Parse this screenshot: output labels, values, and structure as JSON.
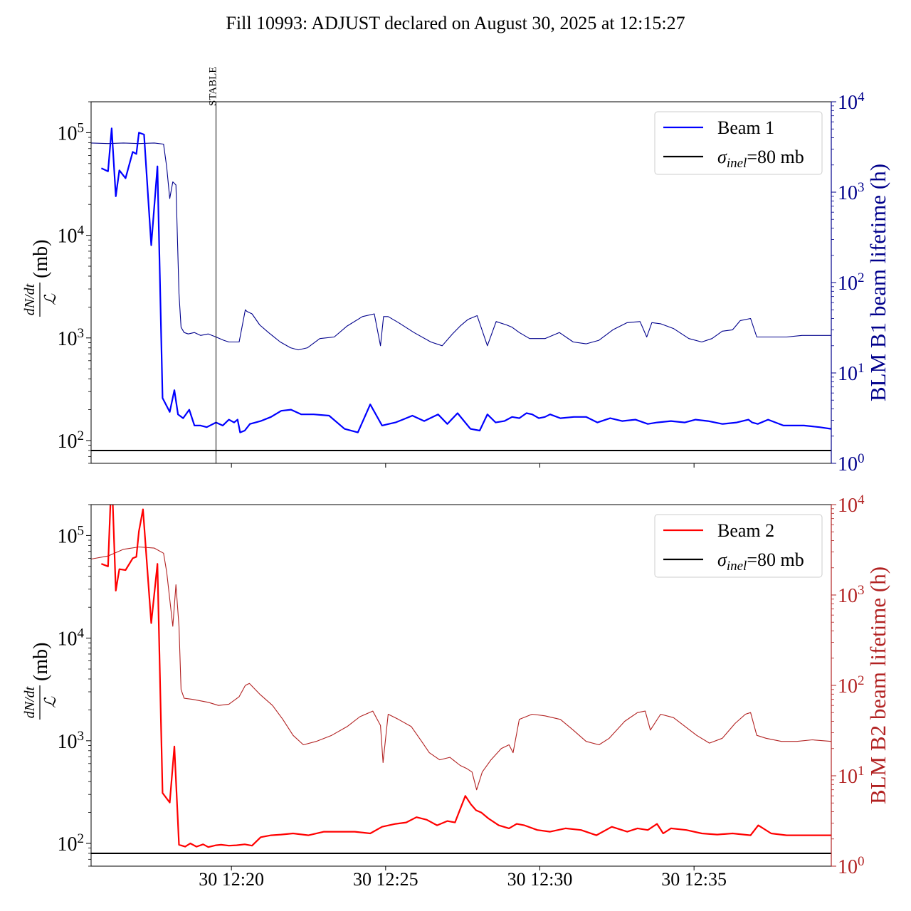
{
  "title": "Fill 10993: ADJUST declared on August 30, 2025 at 12:15:27",
  "colors": {
    "beam1": "#0000ff",
    "beam1_lifetime": "#00008b",
    "beam2": "#ff0000",
    "beam2_lifetime": "#b22222",
    "reference": "#000000",
    "marker": "#000000"
  },
  "chart_data": [
    {
      "type": "line",
      "panel": "top",
      "ylabel_left": "dN/dt / ℒ (mb)",
      "ylabel_right": "BLM B1 beam lifetime (h)",
      "yscale": "log",
      "ylim_left": [
        60,
        200000
      ],
      "ylim_right": [
        1,
        10000
      ],
      "left_ticks": [
        {
          "value": 100,
          "label": "10²"
        },
        {
          "value": 1000,
          "label": "10³"
        },
        {
          "value": 10000,
          "label": "10⁴"
        },
        {
          "value": 100000,
          "label": "10⁵"
        }
      ],
      "right_ticks": [
        {
          "value": 1,
          "label": "10⁰"
        },
        {
          "value": 10,
          "label": "10¹"
        },
        {
          "value": 100,
          "label": "10²"
        },
        {
          "value": 1000,
          "label": "10³"
        },
        {
          "value": 10000,
          "label": "10⁴"
        }
      ],
      "xlim": [
        "12:15:27",
        "12:39:27"
      ],
      "x_ticks": [],
      "legend_position": "top-right",
      "legend": [
        {
          "label": "Beam 1",
          "color": "#0000ff"
        },
        {
          "label": "σinel=80 mb",
          "color": "#000000"
        }
      ],
      "reference_line": {
        "value": 80,
        "label": "σinel=80 mb"
      },
      "marker": {
        "x": "12:19:30",
        "label": "STABLE"
      },
      "series": [
        {
          "name": "Beam 1",
          "axis": "left",
          "color": "#0000ff",
          "x": [
            "12:15:47",
            "12:16:00",
            "12:16:07",
            "12:16:15",
            "12:16:22",
            "12:16:34",
            "12:16:48",
            "12:16:55",
            "12:17:00",
            "12:17:10",
            "12:17:24",
            "12:17:36",
            "12:17:46",
            "12:18:00",
            "12:18:09",
            "12:18:16",
            "12:18:26",
            "12:18:38",
            "12:18:48",
            "12:19:00",
            "12:19:12",
            "12:19:30",
            "12:19:43",
            "12:19:55",
            "12:20:05",
            "12:20:12",
            "12:20:17",
            "12:20:26",
            "12:20:36",
            "12:20:47",
            "12:20:57",
            "12:21:17",
            "12:21:37",
            "12:21:56",
            "12:22:16",
            "12:22:40",
            "12:23:10",
            "12:23:40",
            "12:24:06",
            "12:24:30",
            "12:24:53",
            "12:25:06",
            "12:25:19",
            "12:25:33",
            "12:25:52",
            "12:26:15",
            "12:26:42",
            "12:27:00",
            "12:27:20",
            "12:27:45",
            "12:28:03",
            "12:28:18",
            "12:28:34",
            "12:28:51",
            "12:29:06",
            "12:29:20",
            "12:29:34",
            "12:29:45",
            "12:29:58",
            "12:30:10",
            "12:30:20",
            "12:30:40",
            "12:31:06",
            "12:31:30",
            "12:31:52",
            "12:32:17",
            "12:32:40",
            "12:33:06",
            "12:33:30",
            "12:33:48",
            "12:34:15",
            "12:34:42",
            "12:35:03",
            "12:35:27",
            "12:35:55",
            "12:36:23",
            "12:36:46",
            "12:36:53",
            "12:37:04",
            "12:37:24",
            "12:37:54",
            "12:38:34",
            "12:39:04",
            "12:39:27"
          ],
          "y": [
            45000,
            42000,
            110000,
            24000,
            43000,
            36000,
            65000,
            62000,
            100000,
            96000,
            8000,
            47000,
            260,
            190,
            310,
            180,
            165,
            200,
            140,
            140,
            135,
            150,
            140,
            160,
            150,
            160,
            120,
            125,
            145,
            150,
            155,
            170,
            195,
            200,
            180,
            180,
            175,
            130,
            120,
            225,
            140,
            145,
            150,
            160,
            175,
            155,
            180,
            145,
            185,
            130,
            125,
            180,
            150,
            155,
            170,
            165,
            185,
            180,
            165,
            170,
            180,
            165,
            170,
            170,
            150,
            165,
            155,
            160,
            145,
            150,
            155,
            150,
            160,
            155,
            145,
            150,
            160,
            150,
            145,
            160,
            140,
            140,
            135,
            130
          ]
        },
        {
          "name": "BLM B1 beam lifetime",
          "axis": "right",
          "color": "#00008b",
          "x": [
            "12:15:27",
            "12:16:00",
            "12:16:30",
            "12:17:00",
            "12:17:30",
            "12:17:48",
            "12:17:54",
            "12:18:00",
            "12:18:06",
            "12:18:12",
            "12:18:18",
            "12:18:22",
            "12:18:28",
            "12:18:36",
            "12:18:48",
            "12:19:00",
            "12:19:15",
            "12:19:30",
            "12:19:45",
            "12:19:55",
            "12:20:15",
            "12:20:27",
            "12:20:30",
            "12:20:40",
            "12:20:55",
            "12:21:12",
            "12:21:35",
            "12:21:55",
            "12:22:10",
            "12:22:28",
            "12:22:52",
            "12:23:20",
            "12:23:45",
            "12:24:15",
            "12:24:38",
            "12:24:50",
            "12:24:56",
            "12:25:05",
            "12:25:25",
            "12:25:55",
            "12:26:28",
            "12:26:50",
            "12:27:10",
            "12:27:25",
            "12:27:40",
            "12:27:58",
            "12:28:18",
            "12:28:35",
            "12:28:55",
            "12:29:06",
            "12:29:20",
            "12:29:40",
            "12:30:10",
            "12:30:38",
            "12:31:05",
            "12:31:30",
            "12:31:55",
            "12:32:22",
            "12:32:50",
            "12:33:15",
            "12:33:28",
            "12:33:38",
            "12:33:55",
            "12:34:20",
            "12:34:50",
            "12:35:15",
            "12:35:35",
            "12:35:55",
            "12:36:15",
            "12:36:30",
            "12:36:50",
            "12:37:02",
            "12:37:30",
            "12:38:00",
            "12:38:30",
            "12:39:00",
            "12:39:27"
          ],
          "y": [
            3500,
            3450,
            3500,
            3450,
            3500,
            3400,
            1900,
            850,
            1300,
            1200,
            75,
            32,
            28,
            27,
            28,
            26,
            27,
            25,
            23,
            22,
            22,
            50,
            48,
            45,
            34,
            28,
            22,
            19,
            18,
            19,
            24,
            25,
            33,
            42,
            45,
            20,
            42,
            42,
            36,
            28,
            22,
            20,
            27,
            33,
            39,
            43,
            20,
            37,
            34,
            32,
            28,
            24,
            24,
            28,
            22,
            21,
            23,
            30,
            36,
            37,
            25,
            36,
            35,
            31,
            24,
            22,
            24,
            29,
            30,
            38,
            40,
            25,
            25,
            25,
            26,
            26,
            26
          ]
        }
      ]
    },
    {
      "type": "line",
      "panel": "bottom",
      "ylabel_left": "dN/dt / ℒ (mb)",
      "ylabel_right": "BLM B2 beam lifetime (h)",
      "yscale": "log",
      "ylim_left": [
        60,
        200000
      ],
      "ylim_right": [
        1,
        10000
      ],
      "left_ticks": [
        {
          "value": 100,
          "label": "10²"
        },
        {
          "value": 1000,
          "label": "10³"
        },
        {
          "value": 10000,
          "label": "10⁴"
        },
        {
          "value": 100000,
          "label": "10⁵"
        }
      ],
      "right_ticks": [
        {
          "value": 1,
          "label": "10⁰"
        },
        {
          "value": 10,
          "label": "10¹"
        },
        {
          "value": 100,
          "label": "10²"
        },
        {
          "value": 1000,
          "label": "10³"
        },
        {
          "value": 10000,
          "label": "10⁴"
        }
      ],
      "xlim": [
        "12:15:27",
        "12:39:27"
      ],
      "x_ticks": [
        {
          "value": "12:20:00",
          "label": "30 12:20"
        },
        {
          "value": "12:25:00",
          "label": "30 12:25"
        },
        {
          "value": "12:30:00",
          "label": "30 12:30"
        },
        {
          "value": "12:35:00",
          "label": "30 12:35"
        }
      ],
      "legend_position": "top-right",
      "legend": [
        {
          "label": "Beam 2",
          "color": "#ff0000"
        },
        {
          "label": "σinel=80 mb",
          "color": "#000000"
        }
      ],
      "reference_line": {
        "value": 80,
        "label": "σinel=80 mb"
      },
      "series": [
        {
          "name": "Beam 2",
          "axis": "left",
          "color": "#ff0000",
          "x": [
            "12:15:47",
            "12:16:00",
            "12:16:07",
            "12:16:15",
            "12:16:22",
            "12:16:34",
            "12:16:48",
            "12:16:55",
            "12:17:00",
            "12:17:08",
            "12:17:24",
            "12:17:36",
            "12:17:46",
            "12:18:00",
            "12:18:09",
            "12:18:18",
            "12:18:30",
            "12:18:40",
            "12:18:52",
            "12:19:05",
            "12:19:15",
            "12:19:30",
            "12:19:40",
            "12:19:55",
            "12:20:10",
            "12:20:26",
            "12:20:40",
            "12:20:57",
            "12:21:17",
            "12:21:37",
            "12:22:00",
            "12:22:30",
            "12:23:00",
            "12:23:30",
            "12:24:00",
            "12:24:30",
            "12:24:53",
            "12:25:19",
            "12:25:40",
            "12:26:00",
            "12:26:20",
            "12:26:40",
            "12:27:00",
            "12:27:15",
            "12:27:35",
            "12:27:46",
            "12:27:56",
            "12:28:06",
            "12:28:20",
            "12:28:40",
            "12:29:00",
            "12:29:15",
            "12:29:30",
            "12:29:55",
            "12:30:20",
            "12:30:50",
            "12:31:20",
            "12:31:50",
            "12:32:20",
            "12:32:50",
            "12:33:10",
            "12:33:30",
            "12:33:48",
            "12:34:00",
            "12:34:15",
            "12:34:45",
            "12:35:15",
            "12:35:45",
            "12:36:15",
            "12:36:50",
            "12:37:05",
            "12:37:30",
            "12:38:00",
            "12:38:40",
            "12:39:27"
          ],
          "y": [
            53000,
            50000,
            420000,
            29000,
            47000,
            46000,
            60000,
            62000,
            110000,
            180000,
            14000,
            53000,
            310,
            250,
            880,
            97,
            93,
            100,
            93,
            98,
            92,
            96,
            97,
            95,
            96,
            98,
            95,
            115,
            120,
            122,
            125,
            120,
            130,
            130,
            130,
            125,
            145,
            155,
            160,
            180,
            170,
            150,
            165,
            160,
            290,
            240,
            210,
            200,
            175,
            150,
            140,
            155,
            150,
            135,
            130,
            140,
            135,
            120,
            145,
            130,
            140,
            135,
            155,
            125,
            140,
            135,
            125,
            122,
            125,
            120,
            150,
            125,
            120,
            120,
            120
          ]
        },
        {
          "name": "BLM B2 beam lifetime",
          "axis": "right",
          "color": "#b22222",
          "x": [
            "12:15:27",
            "12:16:00",
            "12:16:30",
            "12:17:00",
            "12:17:30",
            "12:17:48",
            "12:17:54",
            "12:18:00",
            "12:18:06",
            "12:18:12",
            "12:18:18",
            "12:18:22",
            "12:18:28",
            "12:18:45",
            "12:19:15",
            "12:19:35",
            "12:19:55",
            "12:20:15",
            "12:20:27",
            "12:20:35",
            "12:20:55",
            "12:21:20",
            "12:21:40",
            "12:22:00",
            "12:22:20",
            "12:22:45",
            "12:23:15",
            "12:23:45",
            "12:24:10",
            "12:24:35",
            "12:24:50",
            "12:24:55",
            "12:25:05",
            "12:25:25",
            "12:25:50",
            "12:26:10",
            "12:26:25",
            "12:26:45",
            "12:27:05",
            "12:27:25",
            "12:27:38",
            "12:27:48",
            "12:27:57",
            "12:28:08",
            "12:28:25",
            "12:28:45",
            "12:29:00",
            "12:29:08",
            "12:29:20",
            "12:29:45",
            "12:30:10",
            "12:30:40",
            "12:31:05",
            "12:31:30",
            "12:31:55",
            "12:32:15",
            "12:32:45",
            "12:33:10",
            "12:33:25",
            "12:33:35",
            "12:33:55",
            "12:34:20",
            "12:34:40",
            "12:35:05",
            "12:35:30",
            "12:35:55",
            "12:36:20",
            "12:36:40",
            "12:36:50",
            "12:37:02",
            "12:37:20",
            "12:37:50",
            "12:38:20",
            "12:38:50",
            "12:39:27"
          ],
          "y": [
            2500,
            2700,
            3200,
            3400,
            3300,
            2900,
            1800,
            900,
            450,
            1300,
            450,
            90,
            72,
            70,
            65,
            60,
            62,
            75,
            100,
            105,
            80,
            60,
            42,
            28,
            22,
            24,
            28,
            35,
            45,
            52,
            36,
            14,
            48,
            42,
            35,
            24,
            18,
            15,
            16,
            13,
            12,
            11,
            7,
            11,
            15,
            20,
            22,
            18,
            42,
            48,
            46,
            42,
            32,
            24,
            22,
            26,
            40,
            50,
            52,
            32,
            48,
            44,
            36,
            28,
            23,
            26,
            38,
            48,
            50,
            28,
            26,
            24,
            24,
            25,
            24
          ]
        }
      ]
    }
  ]
}
